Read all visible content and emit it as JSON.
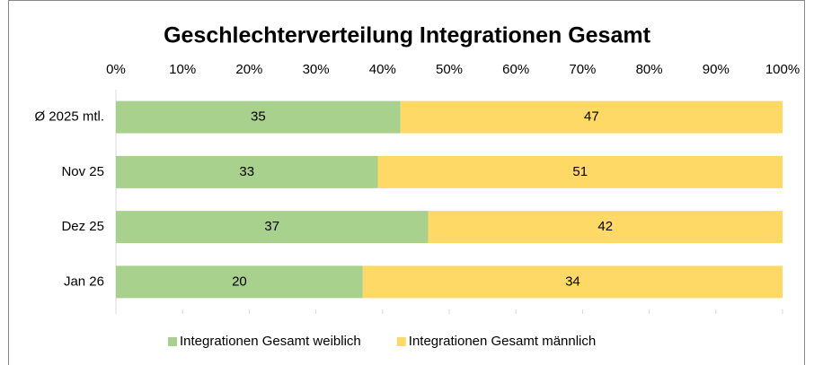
{
  "chart_data": {
    "type": "bar",
    "orientation": "horizontal",
    "stacking": "percent",
    "title": "Geschlechterverteilung Integrationen Gesamt",
    "categories": [
      "Ø 2025 mtl.",
      "Nov 25",
      "Dez 25",
      "Jan 26"
    ],
    "series": [
      {
        "name": "Integrationen Gesamt weiblich",
        "color": "#a9d18e",
        "values": [
          35,
          33,
          37,
          20
        ]
      },
      {
        "name": "Integrationen Gesamt männlich",
        "color": "#ffd966",
        "values": [
          47,
          51,
          42,
          34
        ]
      }
    ],
    "xlim": [
      0,
      100
    ],
    "xticks": [
      {
        "value": 0,
        "label": "0%"
      },
      {
        "value": 10,
        "label": "10%"
      },
      {
        "value": 20,
        "label": "20%"
      },
      {
        "value": 30,
        "label": "30%"
      },
      {
        "value": 40,
        "label": "40%"
      },
      {
        "value": 50,
        "label": "50%"
      },
      {
        "value": 60,
        "label": "60%"
      },
      {
        "value": 70,
        "label": "70%"
      },
      {
        "value": 80,
        "label": "80%"
      },
      {
        "value": 90,
        "label": "90%"
      },
      {
        "value": 100,
        "label": "100%"
      }
    ],
    "legend": "bottom"
  }
}
